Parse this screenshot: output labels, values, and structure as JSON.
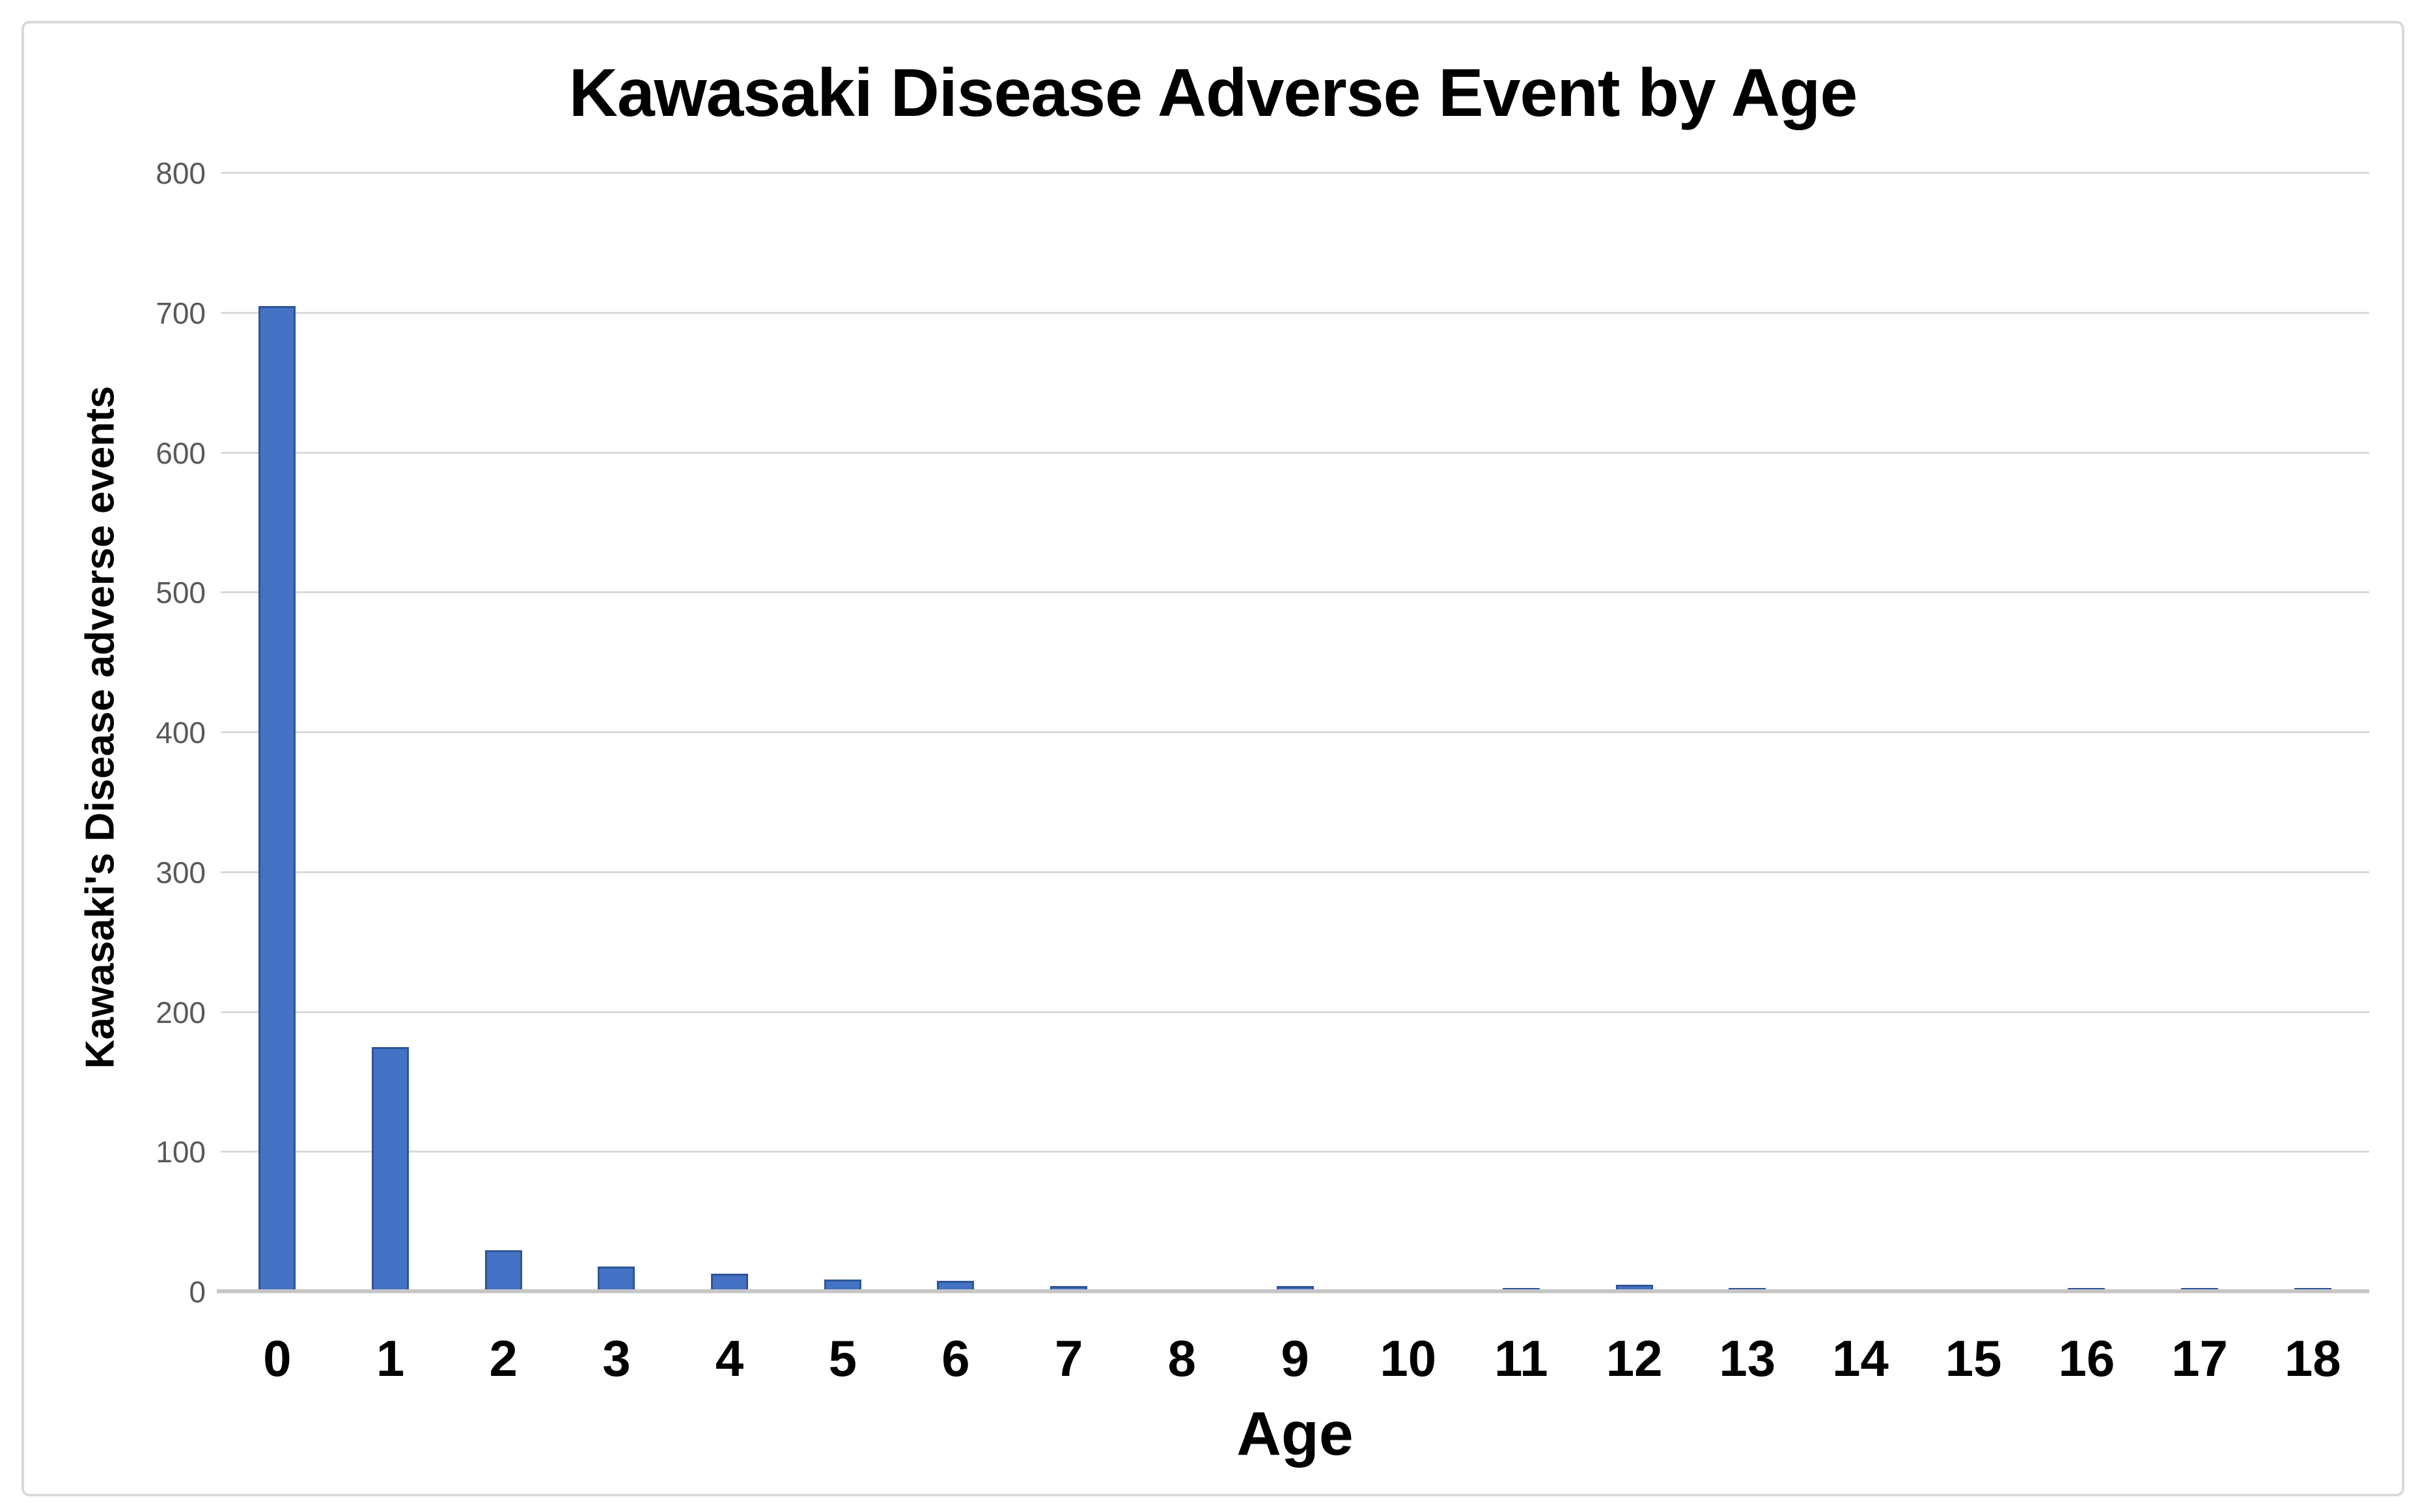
{
  "chart_data": {
    "type": "bar",
    "title": "Kawasaki Disease Adverse Event by Age",
    "xlabel": "Age",
    "ylabel": "Kawasaki's Disease adverse events",
    "categories": [
      "0",
      "1",
      "2",
      "3",
      "4",
      "5",
      "6",
      "7",
      "8",
      "9",
      "10",
      "11",
      "12",
      "13",
      "14",
      "15",
      "16",
      "17",
      "18"
    ],
    "values": [
      705,
      175,
      30,
      18,
      13,
      9,
      8,
      4,
      0,
      4,
      0,
      3,
      5,
      3,
      0,
      0,
      3,
      3,
      3
    ],
    "ylim": [
      0,
      800
    ],
    "yticks": [
      0,
      100,
      200,
      300,
      400,
      500,
      600,
      700,
      800
    ],
    "grid": true,
    "legend_position": "none",
    "colors": {
      "bar_fill": "#4472C4",
      "bar_border": "#2F5597",
      "gridline": "#D9D9D9",
      "axis_line": "#C6C6C6",
      "ytick_label": "#595959",
      "text": "#000000",
      "frame_border": "#D9D9D9",
      "background": "#FFFFFF"
    }
  }
}
